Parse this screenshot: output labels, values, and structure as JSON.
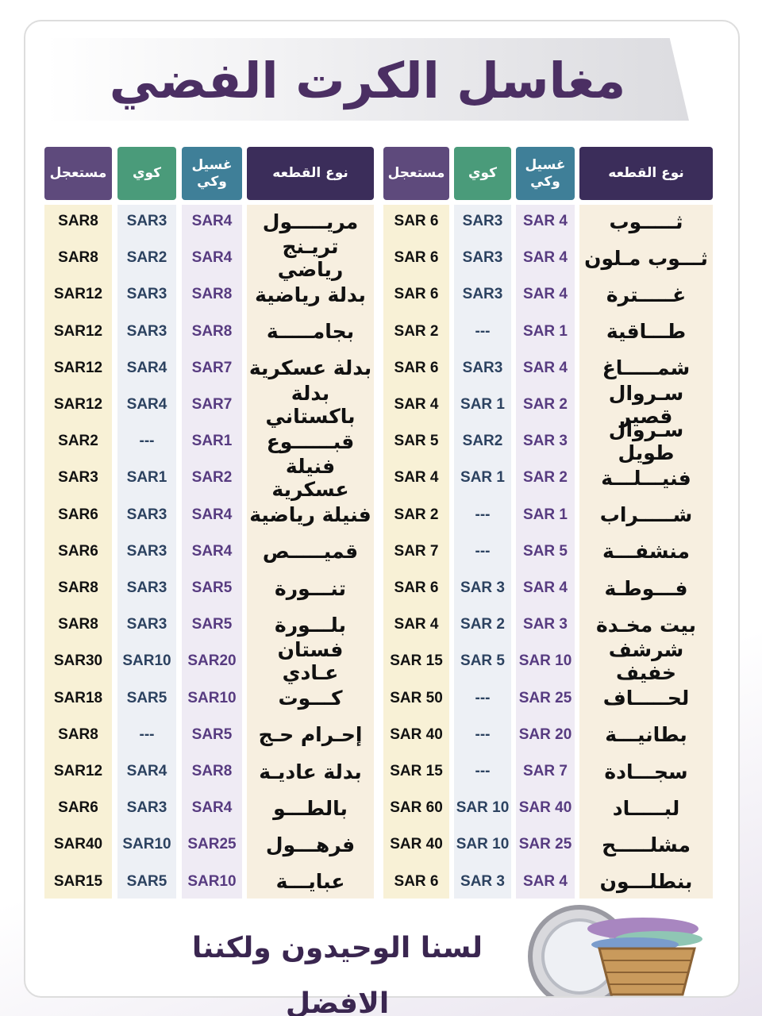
{
  "title": "مغاسل الكرت الفضي",
  "tables": [
    {
      "headers": [
        "نوع القطعه",
        "غسيل وكي",
        "كوي",
        "مستعجل"
      ],
      "rows": [
        [
          "ثـــــوب",
          "SAR 4",
          "SAR3",
          "SAR 6"
        ],
        [
          "ثـــوب مـلون",
          "SAR 4",
          "SAR3",
          "SAR 6"
        ],
        [
          "غـــــترة",
          "SAR 4",
          "SAR3",
          "SAR 6"
        ],
        [
          "طـــاقية",
          "SAR 1",
          "---",
          "SAR 2"
        ],
        [
          "شمـــــاغ",
          "SAR 4",
          "SAR3",
          "SAR 6"
        ],
        [
          "سـروال قصير",
          "SAR 2",
          "SAR 1",
          "SAR 4"
        ],
        [
          "سـروال طويل",
          "SAR 3",
          "SAR2",
          "SAR 5"
        ],
        [
          "فنيـــلـــة",
          "SAR 2",
          "SAR 1",
          "SAR 4"
        ],
        [
          "شـــــراب",
          "SAR 1",
          "---",
          "SAR 2"
        ],
        [
          "منشفـــة",
          "SAR 5",
          "---",
          "SAR 7"
        ],
        [
          "فـــوطـة",
          "SAR 4",
          "SAR 3",
          "SAR 6"
        ],
        [
          "بيت مخـدة",
          "SAR 3",
          "SAR 2",
          "SAR 4"
        ],
        [
          "شرشف خفيف",
          "SAR 10",
          "SAR 5",
          "SAR 15"
        ],
        [
          "لحـــــاف",
          "SAR 25",
          "---",
          "SAR 50"
        ],
        [
          "بطانيـــة",
          "SAR 20",
          "---",
          "SAR 40"
        ],
        [
          "سجـــادة",
          "SAR 7",
          "---",
          "SAR 15"
        ],
        [
          "لبـــــاد",
          "SAR 40",
          "SAR 10",
          "SAR 60"
        ],
        [
          "مشلـــــح",
          "SAR 25",
          "SAR 10",
          "SAR 40"
        ],
        [
          "بنطلـــون",
          "SAR 4",
          "SAR 3",
          "SAR 6"
        ]
      ]
    },
    {
      "headers": [
        "نوع القطعه",
        "غسيل وكي",
        "كوي",
        "مستعجل"
      ],
      "rows": [
        [
          "مريـــــول",
          "SAR4",
          "SAR3",
          "SAR8"
        ],
        [
          "تريـنج رياضي",
          "SAR4",
          "SAR2",
          "SAR8"
        ],
        [
          "بدلة رياضية",
          "SAR8",
          "SAR3",
          "SAR12"
        ],
        [
          "بجامـــــة",
          "SAR8",
          "SAR3",
          "SAR12"
        ],
        [
          "بدلة عسكرية",
          "SAR7",
          "SAR4",
          "SAR12"
        ],
        [
          "بدلة باكستاني",
          "SAR7",
          "SAR4",
          "SAR12"
        ],
        [
          "قبــــــوع",
          "SAR1",
          "---",
          "SAR2"
        ],
        [
          "فنيلة عسكرية",
          "SAR2",
          "SAR1",
          "SAR3"
        ],
        [
          "فنيلة رياضية",
          "SAR4",
          "SAR3",
          "SAR6"
        ],
        [
          "قميـــــص",
          "SAR4",
          "SAR3",
          "SAR6"
        ],
        [
          "تنـــورة",
          "SAR5",
          "SAR3",
          "SAR8"
        ],
        [
          "بلـــورة",
          "SAR5",
          "SAR3",
          "SAR8"
        ],
        [
          "فستان عـادي",
          "SAR20",
          "SAR10",
          "SAR30"
        ],
        [
          "كـــوت",
          "SAR10",
          "SAR5",
          "SAR18"
        ],
        [
          "إحـرام حـج",
          "SAR5",
          "---",
          "SAR8"
        ],
        [
          "بدلة عاديـة",
          "SAR8",
          "SAR4",
          "SAR12"
        ],
        [
          "بالطـــو",
          "SAR4",
          "SAR3",
          "SAR6"
        ],
        [
          "فرهـــول",
          "SAR25",
          "SAR10",
          "SAR40"
        ],
        [
          "عبايـــة",
          "SAR10",
          "SAR5",
          "SAR15"
        ]
      ]
    }
  ],
  "slogan": "لسنا الوحيدون ولكننا الافضل"
}
